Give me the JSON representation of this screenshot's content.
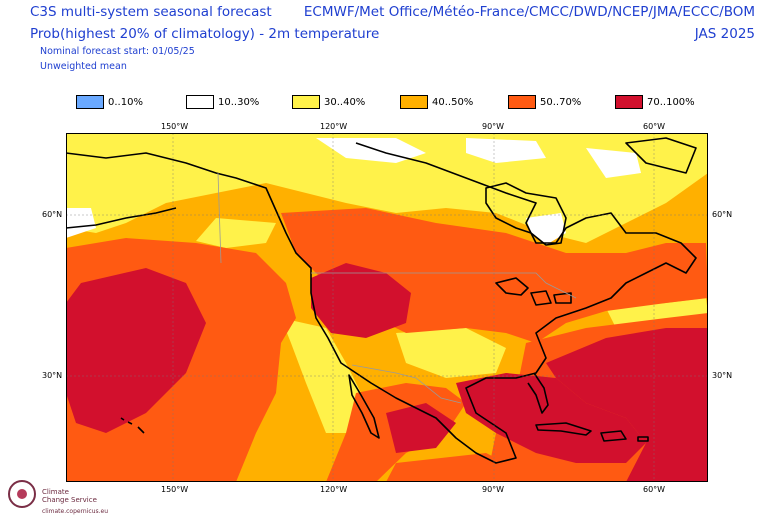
{
  "header": {
    "title_left": "C3S multi-system seasonal forecast",
    "title_right": "ECMWF/Met Office/Météo-France/CMCC/DWD/NCEP/JMA/ECCC/BOM",
    "subtitle_left": "Prob(highest 20% of climatology) - 2m temperature",
    "subtitle_right": "JAS 2025",
    "start_line": "Nominal forecast start: 01/05/25",
    "mean_line": "Unweighted mean"
  },
  "legend": [
    {
      "label": "0..10%",
      "color": "#6aa9ff"
    },
    {
      "label": "10..30%",
      "color": "#ffffff"
    },
    {
      "label": "30..40%",
      "color": "#fff24a"
    },
    {
      "label": "40..50%",
      "color": "#ffb000"
    },
    {
      "label": "50..70%",
      "color": "#ff5a12"
    },
    {
      "label": "70..100%",
      "color": "#d2102d"
    }
  ],
  "axes": {
    "lon_labels": [
      "150°W",
      "120°W",
      "90°W",
      "60°W"
    ],
    "lat_labels": [
      "60°N",
      "30°N"
    ]
  },
  "colors": {
    "ocean_frame": "#000000",
    "coastline": "#000000",
    "border": "#9a9a9a"
  },
  "logo": {
    "name": "Climate",
    "name2": "Change Service",
    "url": "climate.copernicus.eu"
  }
}
